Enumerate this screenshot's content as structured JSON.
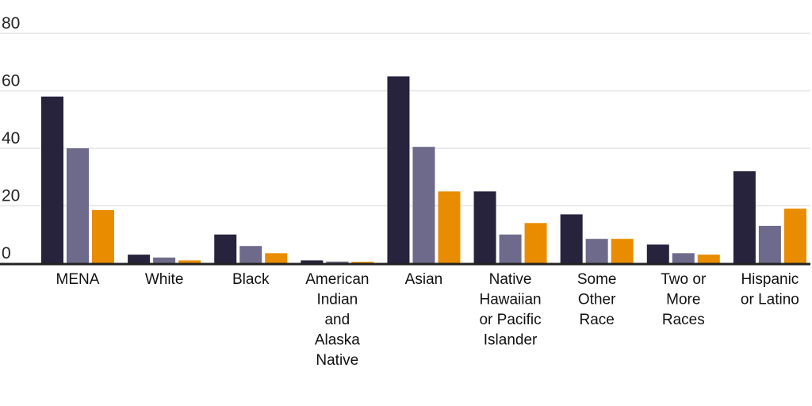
{
  "chart_data": {
    "type": "bar",
    "categories": [
      "MENA",
      "White",
      "Black",
      "American Indian and Alaska Native",
      "Asian",
      "Native Hawaiian or Pacific Islander",
      "Some Other Race",
      "Two or More Races",
      "Hispanic or Latino"
    ],
    "category_lines": [
      [
        "MENA"
      ],
      [
        "White"
      ],
      [
        "Black"
      ],
      [
        "American",
        "Indian",
        "and",
        "Alaska",
        "Native"
      ],
      [
        "Asian"
      ],
      [
        "Native",
        "Hawaiian",
        "or Pacific",
        "Islander"
      ],
      [
        "Some",
        "Other",
        "Race"
      ],
      [
        "Two or",
        "More",
        "Races"
      ],
      [
        "Hispanic",
        "or Latino"
      ]
    ],
    "series": [
      {
        "values": [
          58,
          3,
          10,
          1,
          65,
          25,
          17,
          6.5,
          32
        ],
        "color": "#27233d"
      },
      {
        "values": [
          40,
          2,
          6,
          0.6,
          40.5,
          10,
          8.5,
          3.5,
          13
        ],
        "color": "#6e6a8b"
      },
      {
        "values": [
          18.5,
          1,
          3.5,
          0.5,
          25,
          14,
          8.5,
          3,
          19
        ],
        "color": "#ea8c00"
      }
    ],
    "yticks": [
      "0",
      "20",
      "40",
      "60",
      "80"
    ],
    "ylim": [
      0,
      80
    ],
    "grid": true,
    "title": "",
    "xlabel": "",
    "ylabel": ""
  }
}
